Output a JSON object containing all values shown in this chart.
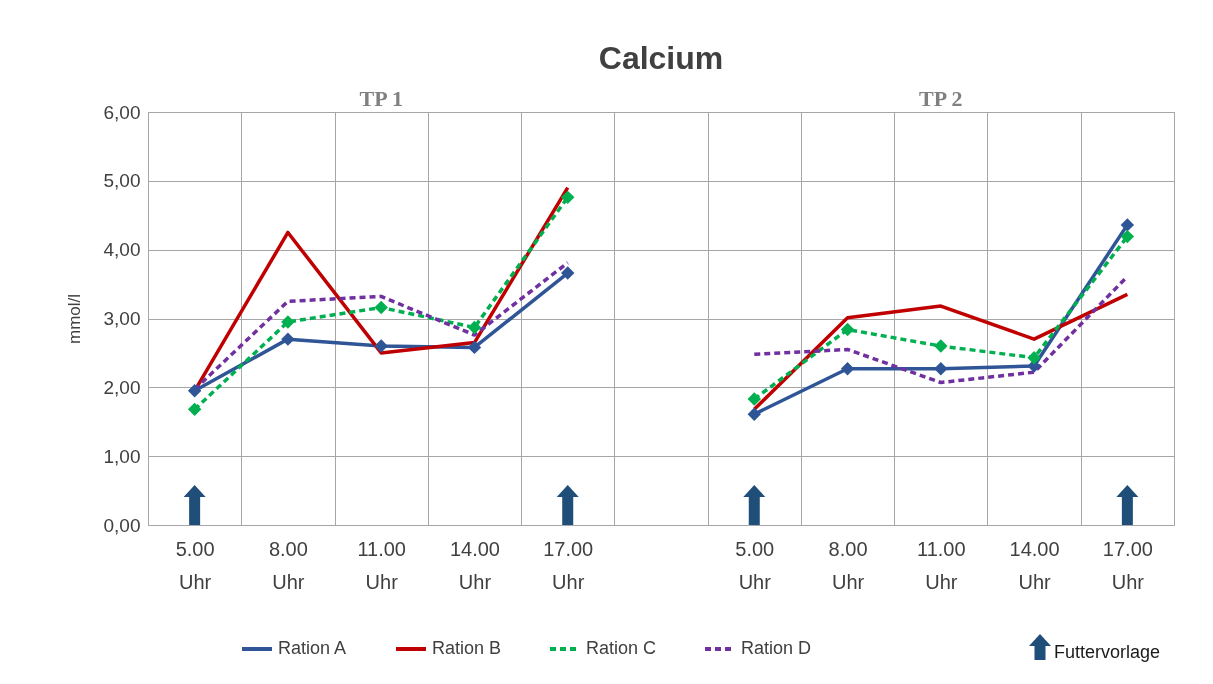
{
  "chart_data": {
    "type": "line",
    "title": "Calcium",
    "ylabel": "mmol/l",
    "categories": [
      "5.00 Uhr",
      "8.00 Uhr",
      "11.00 Uhr",
      "14.00 Uhr",
      "17.00 Uhr",
      null,
      "5.00 Uhr",
      "8.00 Uhr",
      "11.00 Uhr",
      "14.00 Uhr",
      "17.00 Uhr"
    ],
    "series": [
      {
        "name": "Ration A",
        "color": "#2f5597",
        "marker": "diamond",
        "line_style": "solid",
        "values": [
          1.95,
          2.7,
          2.6,
          2.58,
          3.66,
          null,
          1.61,
          2.27,
          2.27,
          2.31,
          4.36
        ]
      },
      {
        "name": "Ration B",
        "color": "#c00000",
        "marker": "none",
        "line_style": "solid",
        "values": [
          1.95,
          4.25,
          2.5,
          2.65,
          4.9,
          null,
          1.68,
          3.01,
          3.18,
          2.7,
          3.35
        ]
      },
      {
        "name": "Ration C",
        "color": "#00b050",
        "marker": "diamond",
        "line_style": "dashed",
        "values": [
          1.68,
          2.95,
          3.16,
          2.87,
          4.76,
          null,
          1.83,
          2.84,
          2.6,
          2.43,
          4.19
        ]
      },
      {
        "name": "Ration D",
        "color": "#7030a0",
        "marker": "none",
        "line_style": "dashed",
        "values": [
          1.97,
          3.25,
          3.32,
          2.76,
          3.81,
          null,
          2.48,
          2.55,
          2.07,
          2.22,
          3.61
        ]
      }
    ],
    "ylim": [
      0,
      6
    ],
    "yticks": [
      {
        "value": 0,
        "label": "0,00"
      },
      {
        "value": 1,
        "label": "1,00"
      },
      {
        "value": 2,
        "label": "2,00"
      },
      {
        "value": 3,
        "label": "3,00"
      },
      {
        "value": 4,
        "label": "4,00"
      },
      {
        "value": 5,
        "label": "5,00"
      },
      {
        "value": 6,
        "label": "6,00"
      }
    ],
    "annotations": [
      "TP 1",
      "TP 2",
      "Futtervorlage"
    ],
    "grid": true,
    "legend": "bottom"
  }
}
